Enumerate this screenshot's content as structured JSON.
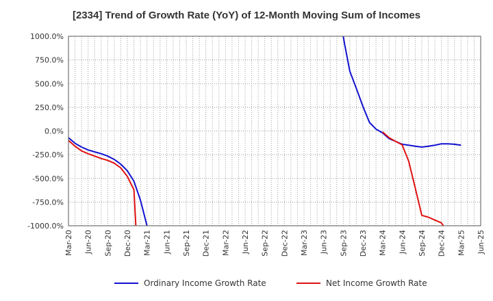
{
  "chart_data": {
    "type": "line",
    "title": "[2334]  Trend of Growth Rate (YoY) of 12-Month Moving Sum of Incomes",
    "xlabel": "",
    "ylabel": "",
    "ylim": [
      -1000,
      1000
    ],
    "grid": true,
    "legend_position": "bottom",
    "x_ticks": [
      "Mar-20",
      "Jun-20",
      "Sep-20",
      "Dec-20",
      "Mar-21",
      "Jun-21",
      "Sep-21",
      "Dec-21",
      "Mar-22",
      "Jun-22",
      "Sep-22",
      "Dec-22",
      "Mar-23",
      "Jun-23",
      "Sep-23",
      "Dec-23",
      "Mar-24",
      "Jun-24",
      "Sep-24",
      "Dec-24",
      "Mar-25",
      "Jun-25"
    ],
    "y_ticks": [
      {
        "value": 1000,
        "label": "1000.0%"
      },
      {
        "value": 750,
        "label": "750.0%"
      },
      {
        "value": 500,
        "label": "500.0%"
      },
      {
        "value": 250,
        "label": "250.0%"
      },
      {
        "value": 0,
        "label": "0.0%"
      },
      {
        "value": -250,
        "label": "-250.0%"
      },
      {
        "value": -500,
        "label": "-500.0%"
      },
      {
        "value": -750,
        "label": "-750.0%"
      },
      {
        "value": -1000,
        "label": "-1000.0%"
      }
    ],
    "series": [
      {
        "name": "Ordinary Income Growth Rate",
        "color": "#1010d0",
        "points": [
          [
            0,
            -70
          ],
          [
            1,
            -130
          ],
          [
            2,
            -170
          ],
          [
            3,
            -200
          ],
          [
            4,
            -220
          ],
          [
            5,
            -240
          ],
          [
            6,
            -265
          ],
          [
            7,
            -300
          ],
          [
            8,
            -350
          ],
          [
            9,
            -420
          ],
          [
            10,
            -530
          ],
          [
            11,
            -730
          ],
          [
            12,
            -1000
          ],
          [
            42,
            1000
          ],
          [
            42.2,
            920
          ],
          [
            43,
            630
          ],
          [
            44,
            450
          ],
          [
            45,
            260
          ],
          [
            46,
            90
          ],
          [
            47,
            20
          ],
          [
            48,
            -20
          ],
          [
            49,
            -80
          ],
          [
            50,
            -110
          ],
          [
            51,
            -140
          ],
          [
            52,
            -150
          ],
          [
            53,
            -160
          ],
          [
            54,
            -170
          ],
          [
            55,
            -160
          ],
          [
            56,
            -150
          ],
          [
            57,
            -135
          ],
          [
            58,
            -135
          ],
          [
            59,
            -140
          ],
          [
            60,
            -150
          ]
        ]
      },
      {
        "name": "Net Income Growth Rate",
        "color": "#e01010",
        "points": [
          [
            0,
            -100
          ],
          [
            1,
            -160
          ],
          [
            2,
            -210
          ],
          [
            3,
            -240
          ],
          [
            4,
            -265
          ],
          [
            5,
            -290
          ],
          [
            6,
            -310
          ],
          [
            7,
            -340
          ],
          [
            8,
            -390
          ],
          [
            9,
            -480
          ],
          [
            10,
            -620
          ],
          [
            10.3,
            -1000
          ],
          [
            48,
            -10
          ],
          [
            49,
            -70
          ],
          [
            50,
            -110
          ],
          [
            51,
            -145
          ],
          [
            52,
            -320
          ],
          [
            53,
            -600
          ],
          [
            54,
            -890
          ],
          [
            55,
            -910
          ],
          [
            56,
            -940
          ],
          [
            57,
            -970
          ],
          [
            57.3,
            -1000
          ]
        ]
      }
    ]
  }
}
